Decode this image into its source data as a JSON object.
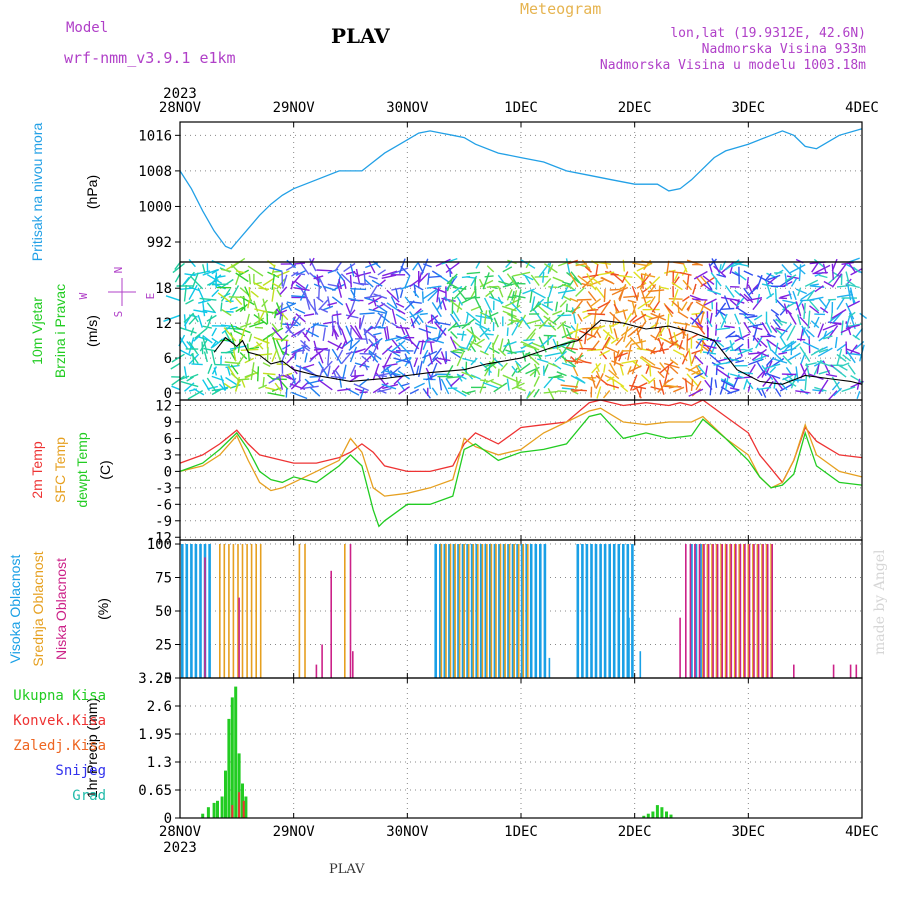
{
  "header": {
    "model_label": "Model",
    "model_name": "wrf-nmm_v3.9.1 e1km",
    "station": "PLAV",
    "product": "Meteogram",
    "coords": "lon,lat (19.9312E, 42.6N)",
    "elevation": "Nadmorska Visina 933m",
    "model_elevation": "Nadmorska Visina u modelu 1003.18m",
    "footer_station": "PLAV",
    "credit": "made by Angel"
  },
  "colors": {
    "pressure": "#22a0e6",
    "temp2m": "#ee3333",
    "sfc_temp": "#e6a020",
    "dewpt": "#22cc22",
    "cloud_high": "#1aa0e6",
    "cloud_mid": "#e6a020",
    "cloud_low": "#cc2288",
    "precip_total": "#22cc22",
    "precip_conv": "#ee3333",
    "title_purple": "#b040c8",
    "product_orange": "#e6b450"
  },
  "chart_data": {
    "type": "meteogram",
    "time_axis": {
      "year": "2023",
      "labels": [
        "28NOV",
        "29NOV",
        "30NOV",
        "1DEC",
        "2DEC",
        "3DEC",
        "4DEC"
      ],
      "unit": "days",
      "range": [
        0,
        6
      ]
    },
    "panels": [
      {
        "id": "pressure",
        "type": "line",
        "ylabel": [
          "Pritisak na nivou mora",
          "(hPa)"
        ],
        "yticks": [
          992,
          1000,
          1008,
          1016
        ],
        "ylim": [
          987.5,
          1019
        ],
        "series": [
          {
            "x": [
              0,
              0.1,
              0.2,
              0.3,
              0.4,
              0.45,
              0.5,
              0.6,
              0.7,
              0.8,
              0.9,
              1.0,
              1.2,
              1.4,
              1.6,
              1.7,
              1.8,
              1.9,
              2.0,
              2.1,
              2.2,
              2.3,
              2.4,
              2.5,
              2.6,
              2.8,
              3.0,
              3.2,
              3.4,
              3.6,
              3.8,
              4.0,
              4.2,
              4.3,
              4.4,
              4.5,
              4.6,
              4.7,
              4.8,
              5.0,
              5.2,
              5.3,
              5.4,
              5.5,
              5.6,
              5.8,
              6.0
            ],
            "y": [
              1008,
              1004,
              999,
              994.5,
              991,
              990.5,
              992,
              995,
              998,
              1000.5,
              1002.5,
              1004,
              1006,
              1008,
              1008,
              1010,
              1012,
              1013.5,
              1015,
              1016.5,
              1017,
              1016.5,
              1016,
              1015.5,
              1014,
              1012,
              1011,
              1010,
              1008,
              1007,
              1006,
              1005,
              1005,
              1003.5,
              1004,
              1006,
              1008.5,
              1011,
              1012.5,
              1014,
              1016,
              1017,
              1016,
              1013.5,
              1013,
              1016,
              1017.5
            ]
          }
        ]
      },
      {
        "id": "wind",
        "type": "wind",
        "ylabel": [
          "10m Vjetar",
          "Brzina i Pravac",
          "(m/s)"
        ],
        "yticks": [
          0,
          6,
          12,
          18
        ],
        "ylim": [
          -1.2,
          22.5
        ],
        "compass": [
          "N",
          "S",
          "W",
          "E"
        ],
        "speed": {
          "x": [
            0.3,
            0.4,
            0.5,
            0.55,
            0.6,
            0.7,
            0.8,
            0.9,
            1.0,
            1.2,
            1.5,
            1.8,
            2.0,
            2.2,
            2.5,
            2.7,
            3.0,
            3.3,
            3.5,
            3.7,
            3.9,
            4.1,
            4.3,
            4.5,
            4.7,
            4.9,
            5.1,
            5.3,
            5.5,
            5.7,
            5.9,
            6.0
          ],
          "y": [
            7,
            9.5,
            8,
            9,
            7,
            6.5,
            5,
            5.5,
            4,
            3,
            2,
            2.5,
            3,
            3.5,
            4,
            5,
            6,
            8,
            9,
            12.5,
            12,
            11,
            11.5,
            10.5,
            9,
            4,
            2,
            1.5,
            3,
            2.5,
            2,
            1.5
          ]
        }
      },
      {
        "id": "temperature",
        "type": "line",
        "ylabel": [
          "2m Temp",
          "SFC Temp",
          "dewpt Temp",
          "(C)"
        ],
        "yticks": [
          -12,
          -9,
          -6,
          -3,
          0,
          3,
          6,
          9,
          12
        ],
        "ylim": [
          -12.5,
          13
        ],
        "series": [
          {
            "name": "2m Temp",
            "x": [
              0,
              0.2,
              0.35,
              0.5,
              0.6,
              0.7,
              0.8,
              1.0,
              1.2,
              1.4,
              1.5,
              1.6,
              1.7,
              1.8,
              2.0,
              2.2,
              2.4,
              2.5,
              2.6,
              2.8,
              3.0,
              3.2,
              3.4,
              3.6,
              3.7,
              3.9,
              4.1,
              4.3,
              4.4,
              4.5,
              4.6,
              4.8,
              5.0,
              5.1,
              5.2,
              5.3,
              5.4,
              5.5,
              5.6,
              5.8,
              6.0
            ],
            "y": [
              1.5,
              3,
              5,
              7.5,
              5,
              3,
              2.5,
              1.5,
              1.5,
              2.5,
              3.5,
              5,
              3.5,
              1,
              0,
              0,
              1,
              5,
              7,
              5,
              8,
              8.5,
              9,
              12.5,
              13,
              12,
              12.5,
              12,
              12.5,
              12,
              13,
              10,
              7,
              3,
              0.5,
              -2,
              2,
              8,
              5.5,
              3,
              2.5
            ]
          },
          {
            "name": "SFC Temp",
            "x": [
              0,
              0.2,
              0.35,
              0.5,
              0.6,
              0.7,
              0.8,
              0.9,
              1.0,
              1.2,
              1.4,
              1.5,
              1.6,
              1.7,
              1.8,
              2.0,
              2.2,
              2.4,
              2.5,
              2.6,
              2.8,
              3.0,
              3.2,
              3.4,
              3.6,
              3.7,
              3.9,
              4.1,
              4.3,
              4.5,
              4.6,
              4.8,
              5.0,
              5.1,
              5.2,
              5.3,
              5.4,
              5.5,
              5.6,
              5.8,
              6.0
            ],
            "y": [
              0,
              1,
              3,
              6.5,
              2,
              -2,
              -3.5,
              -3,
              -2,
              0,
              2,
              6,
              3.5,
              -3,
              -4.5,
              -4,
              -3,
              -1.5,
              6,
              4.5,
              3,
              4,
              7,
              9,
              11,
              11.5,
              9,
              8.5,
              9,
              9,
              10,
              6,
              3,
              -1,
              -3,
              -2,
              2,
              8.5,
              3,
              0,
              -1
            ]
          },
          {
            "name": "dewpt Temp",
            "x": [
              0,
              0.2,
              0.35,
              0.5,
              0.6,
              0.7,
              0.8,
              0.9,
              1.0,
              1.2,
              1.4,
              1.5,
              1.6,
              1.7,
              1.75,
              1.8,
              2.0,
              2.2,
              2.4,
              2.5,
              2.6,
              2.8,
              3.0,
              3.2,
              3.4,
              3.6,
              3.7,
              3.9,
              4.1,
              4.3,
              4.5,
              4.6,
              4.8,
              5.0,
              5.1,
              5.2,
              5.3,
              5.4,
              5.5,
              5.6,
              5.8,
              6.0
            ],
            "y": [
              0,
              1.5,
              4,
              7,
              4,
              0,
              -1.5,
              -2,
              -1,
              -2,
              1,
              3,
              1,
              -7,
              -10,
              -9,
              -6,
              -6,
              -4.5,
              4,
              5,
              2,
              3.5,
              4,
              5,
              10,
              10.5,
              6,
              7,
              6,
              6.5,
              9.5,
              6,
              2,
              -1,
              -3,
              -2.5,
              -0.5,
              7,
              1,
              -2,
              -2.5
            ]
          }
        ]
      },
      {
        "id": "clouds",
        "type": "bar",
        "ylabel": [
          "Visoka Oblacnost",
          "Srednja Oblacnost",
          "Niska Oblacnost",
          "(%)"
        ],
        "yticks": [
          0,
          25,
          50,
          75,
          100
        ],
        "ylim": [
          0,
          103
        ],
        "groups": [
          {
            "name": "Visoka Oblacnost",
            "x_start": 0.02,
            "x_end": 0.27,
            "value": 100
          },
          {
            "name": "Visoka Oblacnost",
            "x_start": 2.25,
            "x_end": 3.22,
            "value": 100
          },
          {
            "name": "Visoka Oblacnost",
            "x_start": 3.5,
            "x_end": 4.0,
            "value": 100
          },
          {
            "name": "Visoka Oblacnost",
            "x_start": 4.5,
            "x_end": 4.6,
            "value": 100
          },
          {
            "name": "Srednja Oblacnost",
            "x_start": 0.35,
            "x_end": 0.75,
            "value": 100
          },
          {
            "name": "Srednja Oblacnost",
            "x_start": 2.3,
            "x_end": 3.1,
            "value": 100
          },
          {
            "name": "Srednja Oblacnost",
            "x_start": 4.6,
            "x_end": 5.2,
            "value": 100
          },
          {
            "name": "Niska Oblacnost",
            "x_start": 4.45,
            "x_end": 5.25,
            "value": 100
          }
        ],
        "extra_bars": [
          {
            "x": 1.05,
            "value": 100,
            "series": "Srednja Oblacnost"
          },
          {
            "x": 1.1,
            "value": 100,
            "series": "Srednja Oblacnost"
          },
          {
            "x": 1.45,
            "value": 100,
            "series": "Srednja Oblacnost"
          },
          {
            "x": 1.5,
            "value": 100,
            "series": "Niska Oblacnost"
          },
          {
            "x": 1.33,
            "value": 80,
            "series": "Niska Oblacnost"
          },
          {
            "x": 0.52,
            "value": 60,
            "series": "Niska Oblacnost"
          },
          {
            "x": 0.22,
            "value": 90,
            "series": "Niska Oblacnost"
          },
          {
            "x": 1.25,
            "value": 25,
            "series": "Niska Oblacnost"
          },
          {
            "x": 1.2,
            "value": 10,
            "series": "Niska Oblacnost"
          },
          {
            "x": 1.52,
            "value": 20,
            "series": "Niska Oblacnost"
          },
          {
            "x": 3.25,
            "value": 15,
            "series": "Visoka Oblacnost"
          },
          {
            "x": 3.95,
            "value": 45,
            "series": "Visoka Oblacnost"
          },
          {
            "x": 4.05,
            "value": 20,
            "series": "Visoka Oblacnost"
          },
          {
            "x": 4.4,
            "value": 45,
            "series": "Niska Oblacnost"
          },
          {
            "x": 5.4,
            "value": 10,
            "series": "Niska Oblacnost"
          },
          {
            "x": 5.75,
            "value": 10,
            "series": "Niska Oblacnost"
          },
          {
            "x": 5.9,
            "value": 10,
            "series": "Niska Oblacnost"
          },
          {
            "x": 5.95,
            "value": 10,
            "series": "Niska Oblacnost"
          }
        ]
      },
      {
        "id": "precip",
        "type": "bar",
        "ylabel": [
          "1hr Precip",
          "(mm)"
        ],
        "yticks": [
          "0",
          "0.65",
          "1.3",
          "1.95",
          "2.6",
          "3.25"
        ],
        "ylim": [
          0,
          3.25
        ],
        "legend": [
          "Ukupna Kisa",
          "Konvek.Kisa",
          "Zaledj.Kisa",
          "Snijeg",
          "Grad"
        ],
        "legend_colors": [
          "#22cc22",
          "#ee3333",
          "#ee6622",
          "#3333ee",
          "#22bbaa"
        ],
        "series": [
          {
            "name": "Ukupna Kisa",
            "x": [
              0.2,
              0.25,
              0.3,
              0.33,
              0.37,
              0.4,
              0.43,
              0.46,
              0.49,
              0.52,
              0.55,
              0.58,
              4.08,
              4.12,
              4.16,
              4.2,
              4.24,
              4.28,
              4.32
            ],
            "y": [
              0.1,
              0.25,
              0.35,
              0.4,
              0.5,
              1.1,
              2.3,
              2.8,
              3.05,
              1.5,
              0.8,
              0.5,
              0.05,
              0.1,
              0.15,
              0.3,
              0.25,
              0.15,
              0.08
            ]
          },
          {
            "name": "Konvek.Kisa",
            "x": [
              0.46,
              0.52,
              0.56
            ],
            "y": [
              0.3,
              0.6,
              0.4
            ]
          }
        ]
      }
    ]
  }
}
